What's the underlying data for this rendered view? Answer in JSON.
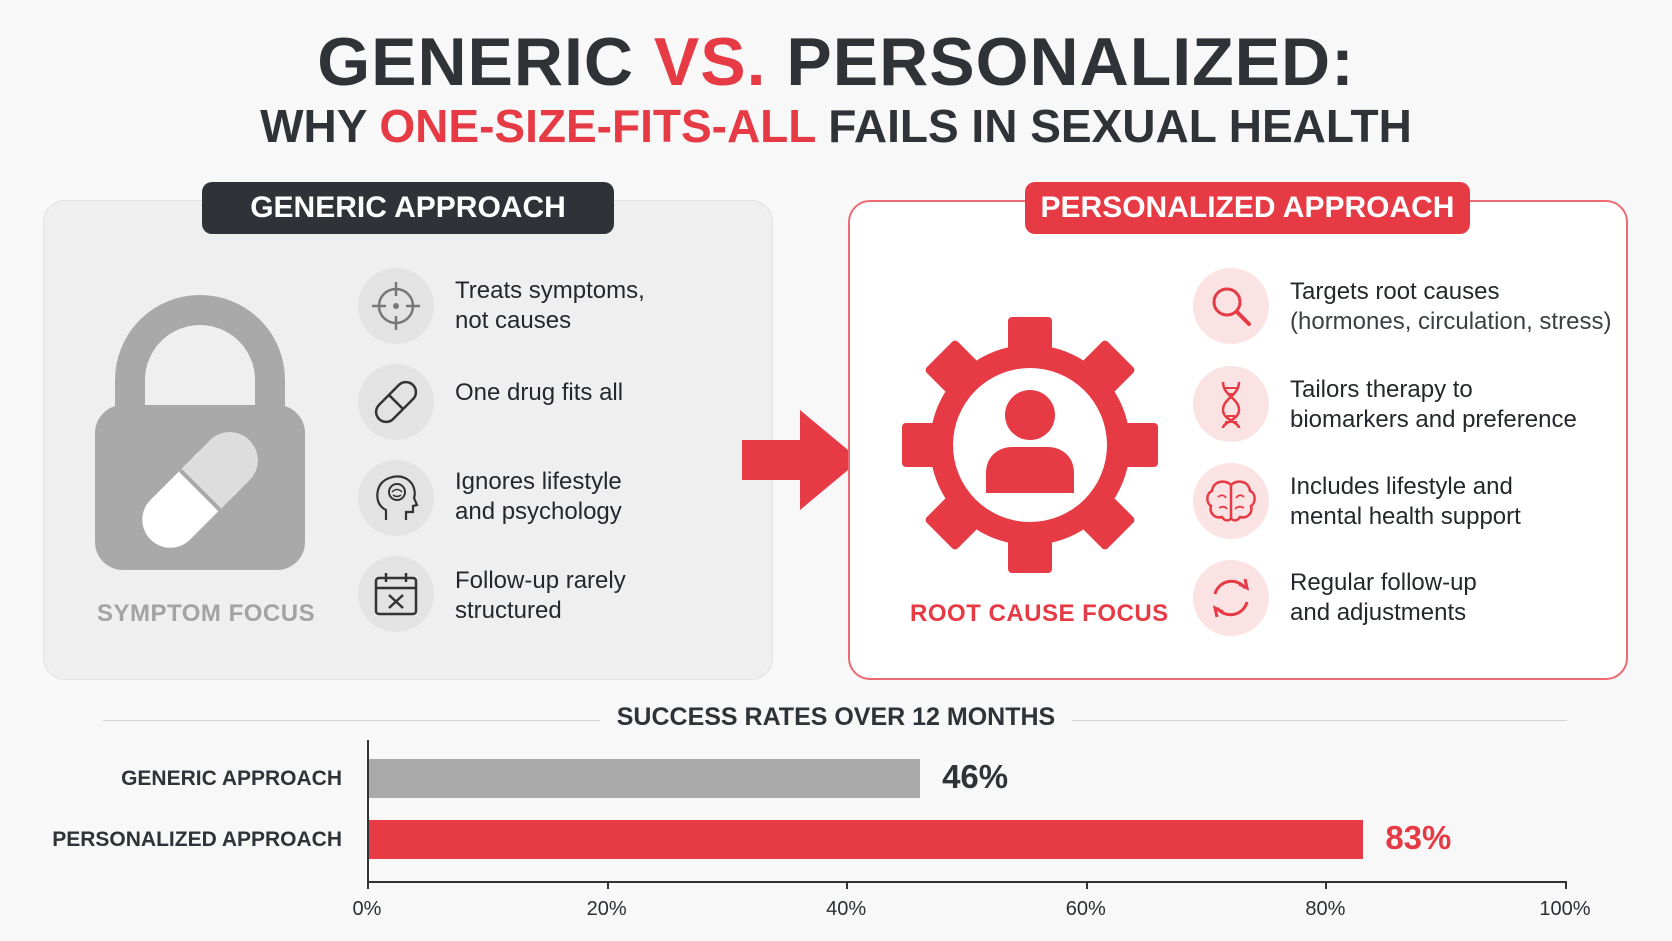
{
  "header": {
    "title_part1": "GENERIC ",
    "title_part2": "VS.",
    "title_part3": " PERSONALIZED:",
    "subtitle_part1": "WHY ",
    "subtitle_part2": "ONE-SIZE-FITS-ALL",
    "subtitle_part3": " FAILS IN SEXUAL HEALTH"
  },
  "generic": {
    "label": "GENERIC APPROACH",
    "focus": "SYMPTOM FOCUS",
    "items": [
      {
        "line1": "Treats symptoms,",
        "line2": "not causes",
        "icon": "target-icon"
      },
      {
        "line1": "One drug fits all",
        "line2": "",
        "icon": "pill-icon"
      },
      {
        "line1": "Ignores lifestyle",
        "line2": "and psychology",
        "icon": "head-brain-icon"
      },
      {
        "line1": "Follow-up rarely",
        "line2": "structured",
        "icon": "calendar-x-icon"
      }
    ]
  },
  "personalized": {
    "label": "PERSONALIZED APPROACH",
    "focus": "ROOT CAUSE FOCUS",
    "items": [
      {
        "line1": "Targets root causes",
        "line2": "(hormones, circulation, stress)",
        "icon": "magnifier-icon"
      },
      {
        "line1": "Tailors therapy to",
        "line2": "biomarkers and preference",
        "icon": "dna-icon"
      },
      {
        "line1": "Includes lifestyle and",
        "line2": "mental health support",
        "icon": "brain-icon"
      },
      {
        "line1": "Regular follow-up",
        "line2": "and adjustments",
        "icon": "refresh-icon"
      }
    ]
  },
  "colors": {
    "accent": "#e63a45",
    "dark": "#2f3338",
    "gray_bar": "#aaaaaa"
  },
  "chart_data": {
    "type": "bar",
    "orientation": "horizontal",
    "title": "SUCCESS RATES OVER 12 MONTHS",
    "categories": [
      "GENERIC APPROACH",
      "PERSONALIZED APPROACH"
    ],
    "values": [
      46,
      83
    ],
    "value_labels": [
      "46%",
      "83%"
    ],
    "xlim": [
      0,
      100
    ],
    "ticks": [
      "0%",
      "20%",
      "40%",
      "60%",
      "80%",
      "100%"
    ],
    "grid": false
  }
}
